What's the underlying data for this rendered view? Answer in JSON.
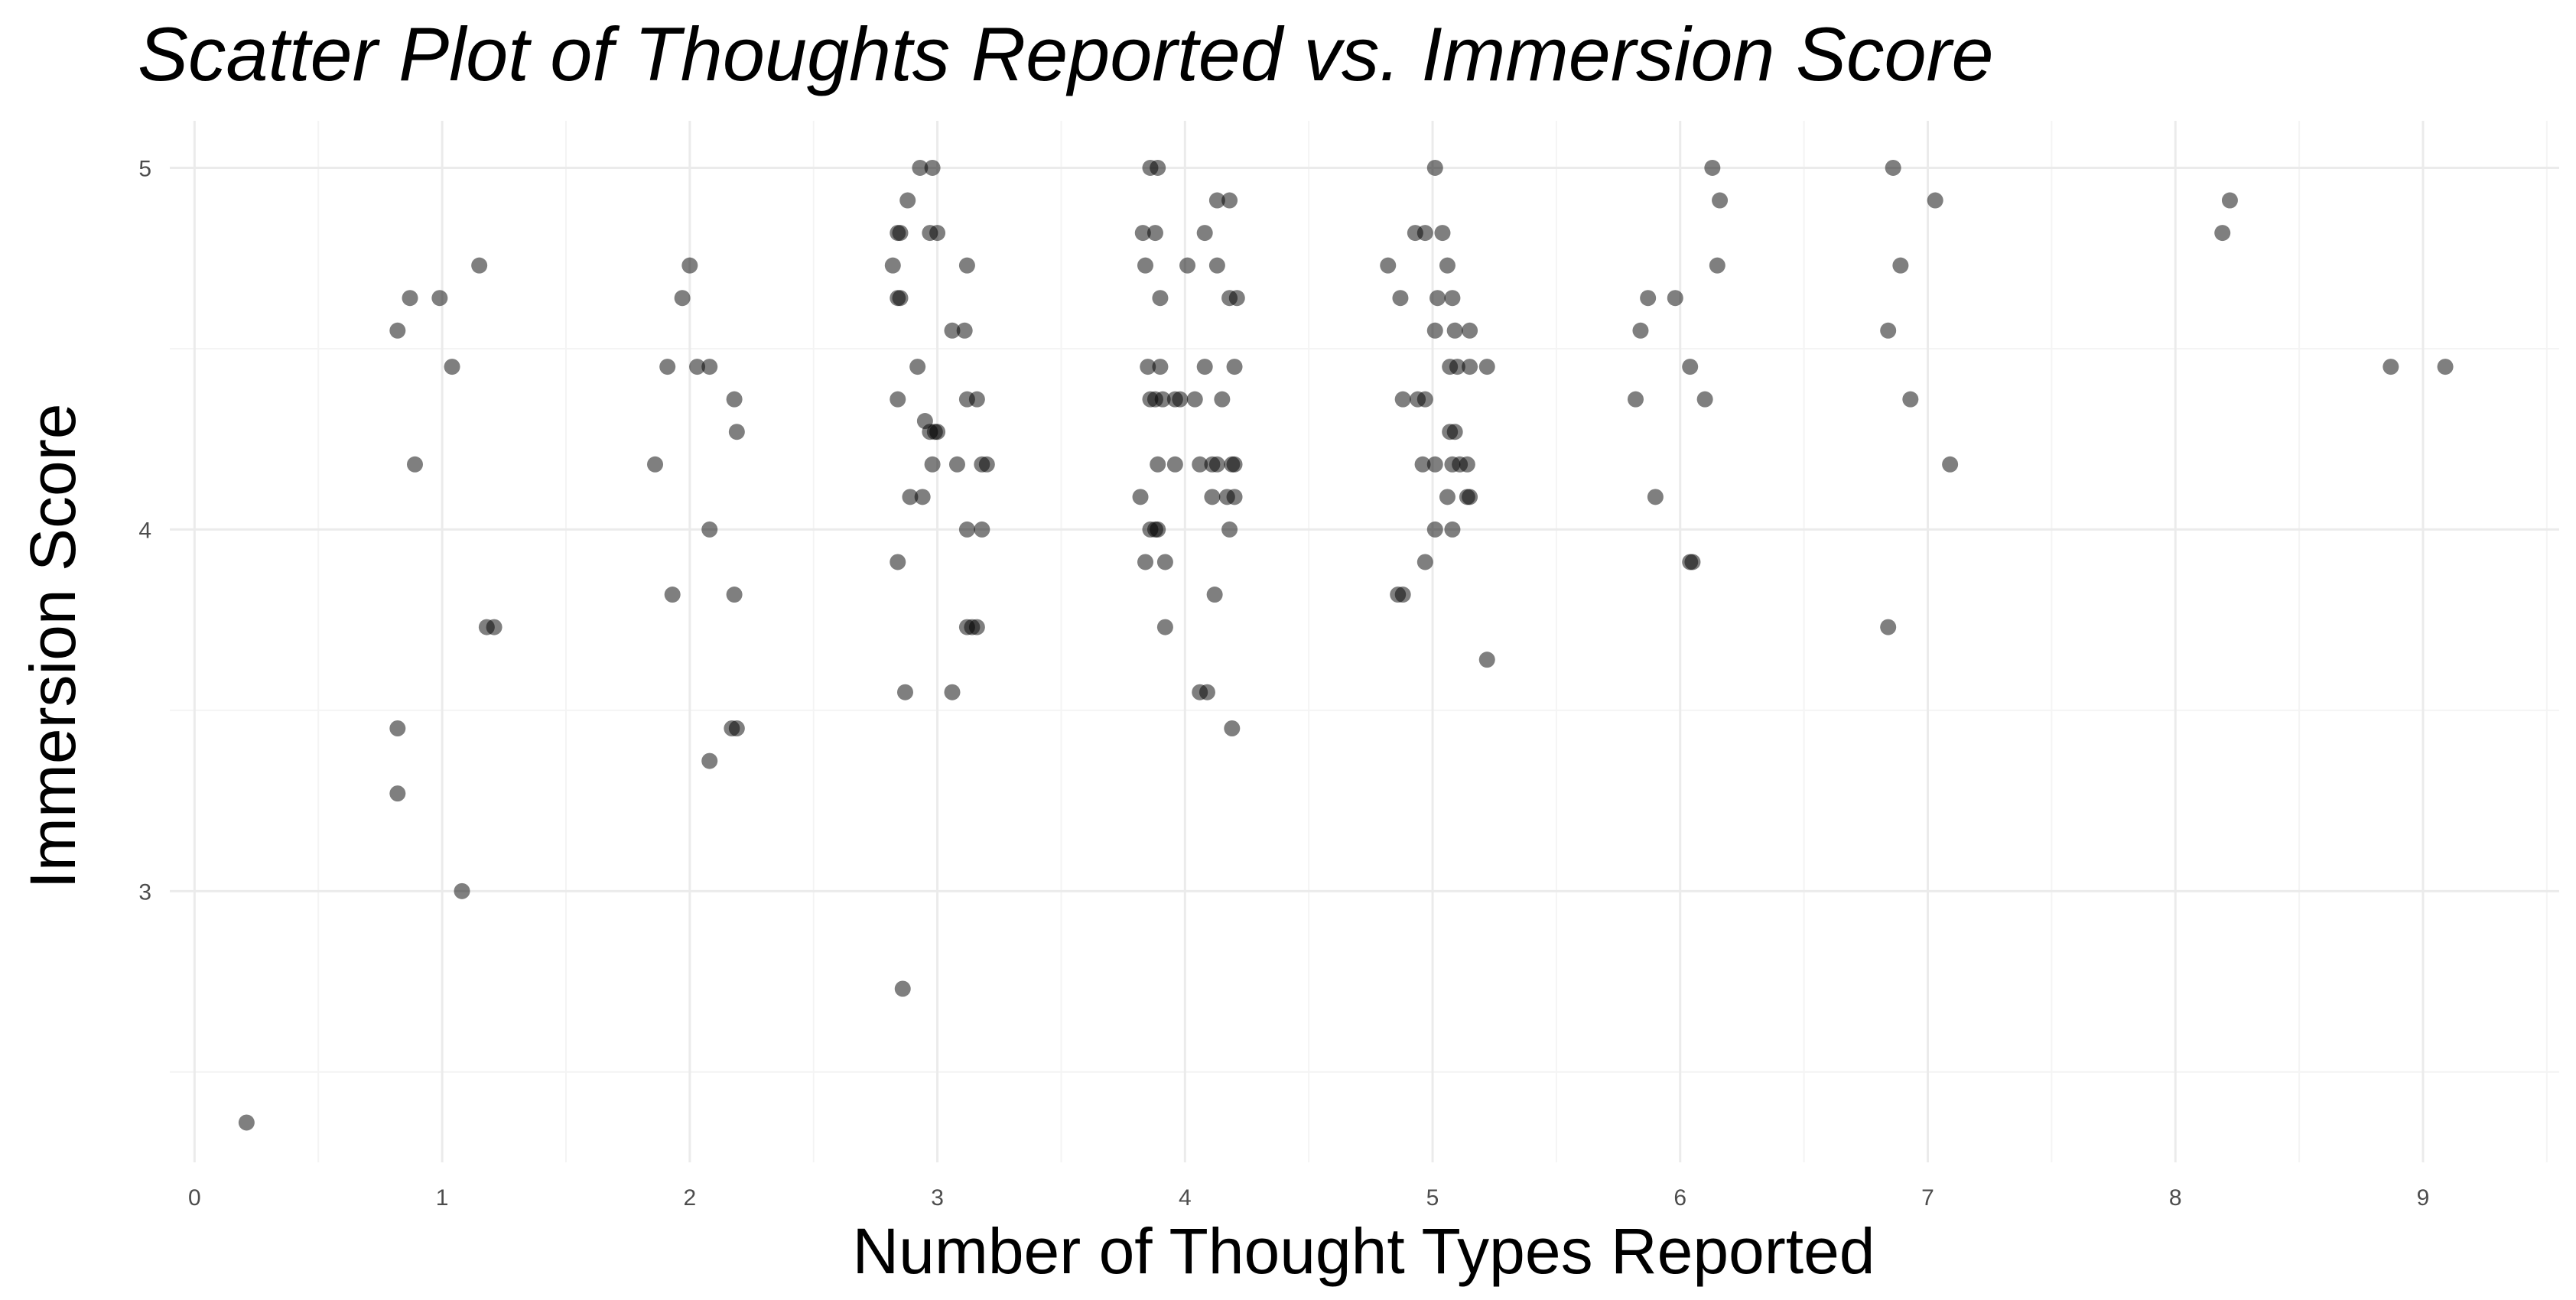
{
  "chart_data": {
    "type": "scatter",
    "title": "Scatter Plot of Thoughts Reported vs. Immersion Score",
    "xlabel": "Number of Thought Types Reported",
    "ylabel": "Immersion Score",
    "xlim": [
      -0.1,
      9.55
    ],
    "ylim": [
      2.25,
      5.13
    ],
    "x_ticks": [
      0,
      1,
      2,
      3,
      4,
      5,
      6,
      7,
      8,
      9
    ],
    "x_tick_labels": [
      "0",
      "1",
      "2",
      "3",
      "4",
      "5",
      "6",
      "7",
      "8",
      "9"
    ],
    "y_ticks": [
      3,
      4,
      5
    ],
    "y_tick_labels": [
      "3",
      "4",
      "5"
    ],
    "grid": true,
    "point_color": "#000000",
    "point_opacity": 0.5,
    "points": [
      {
        "x": 0.21,
        "y": 2.36
      },
      {
        "x": 0.82,
        "y": 4.55
      },
      {
        "x": 0.87,
        "y": 4.64
      },
      {
        "x": 0.99,
        "y": 4.64
      },
      {
        "x": 1.15,
        "y": 4.73
      },
      {
        "x": 1.04,
        "y": 4.45
      },
      {
        "x": 0.89,
        "y": 4.18
      },
      {
        "x": 1.18,
        "y": 3.73
      },
      {
        "x": 1.21,
        "y": 3.73
      },
      {
        "x": 0.82,
        "y": 3.45
      },
      {
        "x": 0.82,
        "y": 3.27
      },
      {
        "x": 1.08,
        "y": 3.0
      },
      {
        "x": 2.0,
        "y": 4.73
      },
      {
        "x": 1.97,
        "y": 4.64
      },
      {
        "x": 1.91,
        "y": 4.45
      },
      {
        "x": 2.03,
        "y": 4.45
      },
      {
        "x": 2.08,
        "y": 4.45
      },
      {
        "x": 2.18,
        "y": 4.36
      },
      {
        "x": 2.19,
        "y": 4.27
      },
      {
        "x": 1.86,
        "y": 4.18
      },
      {
        "x": 2.08,
        "y": 4.0
      },
      {
        "x": 1.93,
        "y": 3.82
      },
      {
        "x": 2.18,
        "y": 3.82
      },
      {
        "x": 2.17,
        "y": 3.45
      },
      {
        "x": 2.19,
        "y": 3.45
      },
      {
        "x": 2.08,
        "y": 3.36
      },
      {
        "x": 2.93,
        "y": 5.0
      },
      {
        "x": 2.98,
        "y": 5.0
      },
      {
        "x": 2.88,
        "y": 4.91
      },
      {
        "x": 2.84,
        "y": 4.82
      },
      {
        "x": 2.85,
        "y": 4.82
      },
      {
        "x": 2.97,
        "y": 4.82
      },
      {
        "x": 3.0,
        "y": 4.82
      },
      {
        "x": 2.82,
        "y": 4.73
      },
      {
        "x": 3.12,
        "y": 4.73
      },
      {
        "x": 2.84,
        "y": 4.64
      },
      {
        "x": 2.85,
        "y": 4.64
      },
      {
        "x": 3.06,
        "y": 4.55
      },
      {
        "x": 3.11,
        "y": 4.55
      },
      {
        "x": 2.92,
        "y": 4.45
      },
      {
        "x": 2.84,
        "y": 4.36
      },
      {
        "x": 3.12,
        "y": 4.36
      },
      {
        "x": 3.16,
        "y": 4.36
      },
      {
        "x": 2.95,
        "y": 4.3
      },
      {
        "x": 2.97,
        "y": 4.27
      },
      {
        "x": 2.99,
        "y": 4.27
      },
      {
        "x": 3.0,
        "y": 4.27
      },
      {
        "x": 2.98,
        "y": 4.18
      },
      {
        "x": 3.08,
        "y": 4.18
      },
      {
        "x": 3.18,
        "y": 4.18
      },
      {
        "x": 3.2,
        "y": 4.18
      },
      {
        "x": 2.89,
        "y": 4.09
      },
      {
        "x": 2.94,
        "y": 4.09
      },
      {
        "x": 3.12,
        "y": 4.0
      },
      {
        "x": 3.18,
        "y": 4.0
      },
      {
        "x": 2.84,
        "y": 3.91
      },
      {
        "x": 3.12,
        "y": 3.73
      },
      {
        "x": 3.14,
        "y": 3.73
      },
      {
        "x": 3.16,
        "y": 3.73
      },
      {
        "x": 2.87,
        "y": 3.55
      },
      {
        "x": 3.06,
        "y": 3.55
      },
      {
        "x": 2.86,
        "y": 2.73
      },
      {
        "x": 3.86,
        "y": 5.0
      },
      {
        "x": 3.89,
        "y": 5.0
      },
      {
        "x": 3.83,
        "y": 4.82
      },
      {
        "x": 3.88,
        "y": 4.82
      },
      {
        "x": 4.08,
        "y": 4.82
      },
      {
        "x": 4.13,
        "y": 4.91
      },
      {
        "x": 4.18,
        "y": 4.91
      },
      {
        "x": 3.84,
        "y": 4.73
      },
      {
        "x": 4.01,
        "y": 4.73
      },
      {
        "x": 4.13,
        "y": 4.73
      },
      {
        "x": 3.9,
        "y": 4.64
      },
      {
        "x": 4.18,
        "y": 4.64
      },
      {
        "x": 4.21,
        "y": 4.64
      },
      {
        "x": 3.85,
        "y": 4.45
      },
      {
        "x": 3.9,
        "y": 4.45
      },
      {
        "x": 4.08,
        "y": 4.45
      },
      {
        "x": 4.2,
        "y": 4.45
      },
      {
        "x": 3.86,
        "y": 4.36
      },
      {
        "x": 3.88,
        "y": 4.36
      },
      {
        "x": 3.91,
        "y": 4.36
      },
      {
        "x": 3.96,
        "y": 4.36
      },
      {
        "x": 3.98,
        "y": 4.36
      },
      {
        "x": 4.04,
        "y": 4.36
      },
      {
        "x": 4.15,
        "y": 4.36
      },
      {
        "x": 3.89,
        "y": 4.18
      },
      {
        "x": 3.96,
        "y": 4.18
      },
      {
        "x": 4.06,
        "y": 4.18
      },
      {
        "x": 4.11,
        "y": 4.18
      },
      {
        "x": 4.13,
        "y": 4.18
      },
      {
        "x": 4.19,
        "y": 4.18
      },
      {
        "x": 4.2,
        "y": 4.18
      },
      {
        "x": 3.82,
        "y": 4.09
      },
      {
        "x": 4.11,
        "y": 4.09
      },
      {
        "x": 4.17,
        "y": 4.09
      },
      {
        "x": 4.2,
        "y": 4.09
      },
      {
        "x": 3.86,
        "y": 4.0
      },
      {
        "x": 3.88,
        "y": 4.0
      },
      {
        "x": 3.89,
        "y": 4.0
      },
      {
        "x": 4.18,
        "y": 4.0
      },
      {
        "x": 3.84,
        "y": 3.91
      },
      {
        "x": 3.92,
        "y": 3.91
      },
      {
        "x": 4.12,
        "y": 3.82
      },
      {
        "x": 3.92,
        "y": 3.73
      },
      {
        "x": 4.06,
        "y": 3.55
      },
      {
        "x": 4.09,
        "y": 3.55
      },
      {
        "x": 4.19,
        "y": 3.45
      },
      {
        "x": 5.01,
        "y": 5.0
      },
      {
        "x": 4.93,
        "y": 4.82
      },
      {
        "x": 4.97,
        "y": 4.82
      },
      {
        "x": 5.04,
        "y": 4.82
      },
      {
        "x": 4.82,
        "y": 4.73
      },
      {
        "x": 5.06,
        "y": 4.73
      },
      {
        "x": 4.87,
        "y": 4.64
      },
      {
        "x": 5.02,
        "y": 4.64
      },
      {
        "x": 5.08,
        "y": 4.64
      },
      {
        "x": 5.01,
        "y": 4.55
      },
      {
        "x": 5.09,
        "y": 4.55
      },
      {
        "x": 5.15,
        "y": 4.55
      },
      {
        "x": 5.07,
        "y": 4.45
      },
      {
        "x": 5.1,
        "y": 4.45
      },
      {
        "x": 5.15,
        "y": 4.45
      },
      {
        "x": 5.22,
        "y": 4.45
      },
      {
        "x": 4.88,
        "y": 4.36
      },
      {
        "x": 4.94,
        "y": 4.36
      },
      {
        "x": 4.97,
        "y": 4.36
      },
      {
        "x": 5.07,
        "y": 4.27
      },
      {
        "x": 5.09,
        "y": 4.27
      },
      {
        "x": 4.96,
        "y": 4.18
      },
      {
        "x": 5.01,
        "y": 4.18
      },
      {
        "x": 5.08,
        "y": 4.18
      },
      {
        "x": 5.11,
        "y": 4.18
      },
      {
        "x": 5.14,
        "y": 4.18
      },
      {
        "x": 5.06,
        "y": 4.09
      },
      {
        "x": 5.14,
        "y": 4.09
      },
      {
        "x": 5.15,
        "y": 4.09
      },
      {
        "x": 5.01,
        "y": 4.0
      },
      {
        "x": 5.08,
        "y": 4.0
      },
      {
        "x": 4.97,
        "y": 3.91
      },
      {
        "x": 4.86,
        "y": 3.82
      },
      {
        "x": 4.88,
        "y": 3.82
      },
      {
        "x": 5.22,
        "y": 3.64
      },
      {
        "x": 6.13,
        "y": 5.0
      },
      {
        "x": 6.16,
        "y": 4.91
      },
      {
        "x": 6.15,
        "y": 4.73
      },
      {
        "x": 5.87,
        "y": 4.64
      },
      {
        "x": 5.98,
        "y": 4.64
      },
      {
        "x": 5.84,
        "y": 4.55
      },
      {
        "x": 6.04,
        "y": 4.45
      },
      {
        "x": 5.82,
        "y": 4.36
      },
      {
        "x": 6.1,
        "y": 4.36
      },
      {
        "x": 5.9,
        "y": 4.09
      },
      {
        "x": 6.04,
        "y": 3.91
      },
      {
        "x": 6.05,
        "y": 3.91
      },
      {
        "x": 6.86,
        "y": 5.0
      },
      {
        "x": 7.03,
        "y": 4.91
      },
      {
        "x": 6.89,
        "y": 4.73
      },
      {
        "x": 6.84,
        "y": 4.55
      },
      {
        "x": 6.93,
        "y": 4.36
      },
      {
        "x": 7.09,
        "y": 4.18
      },
      {
        "x": 6.84,
        "y": 3.73
      },
      {
        "x": 8.22,
        "y": 4.91
      },
      {
        "x": 8.19,
        "y": 4.82
      },
      {
        "x": 8.87,
        "y": 4.45
      },
      {
        "x": 9.09,
        "y": 4.45
      }
    ]
  }
}
